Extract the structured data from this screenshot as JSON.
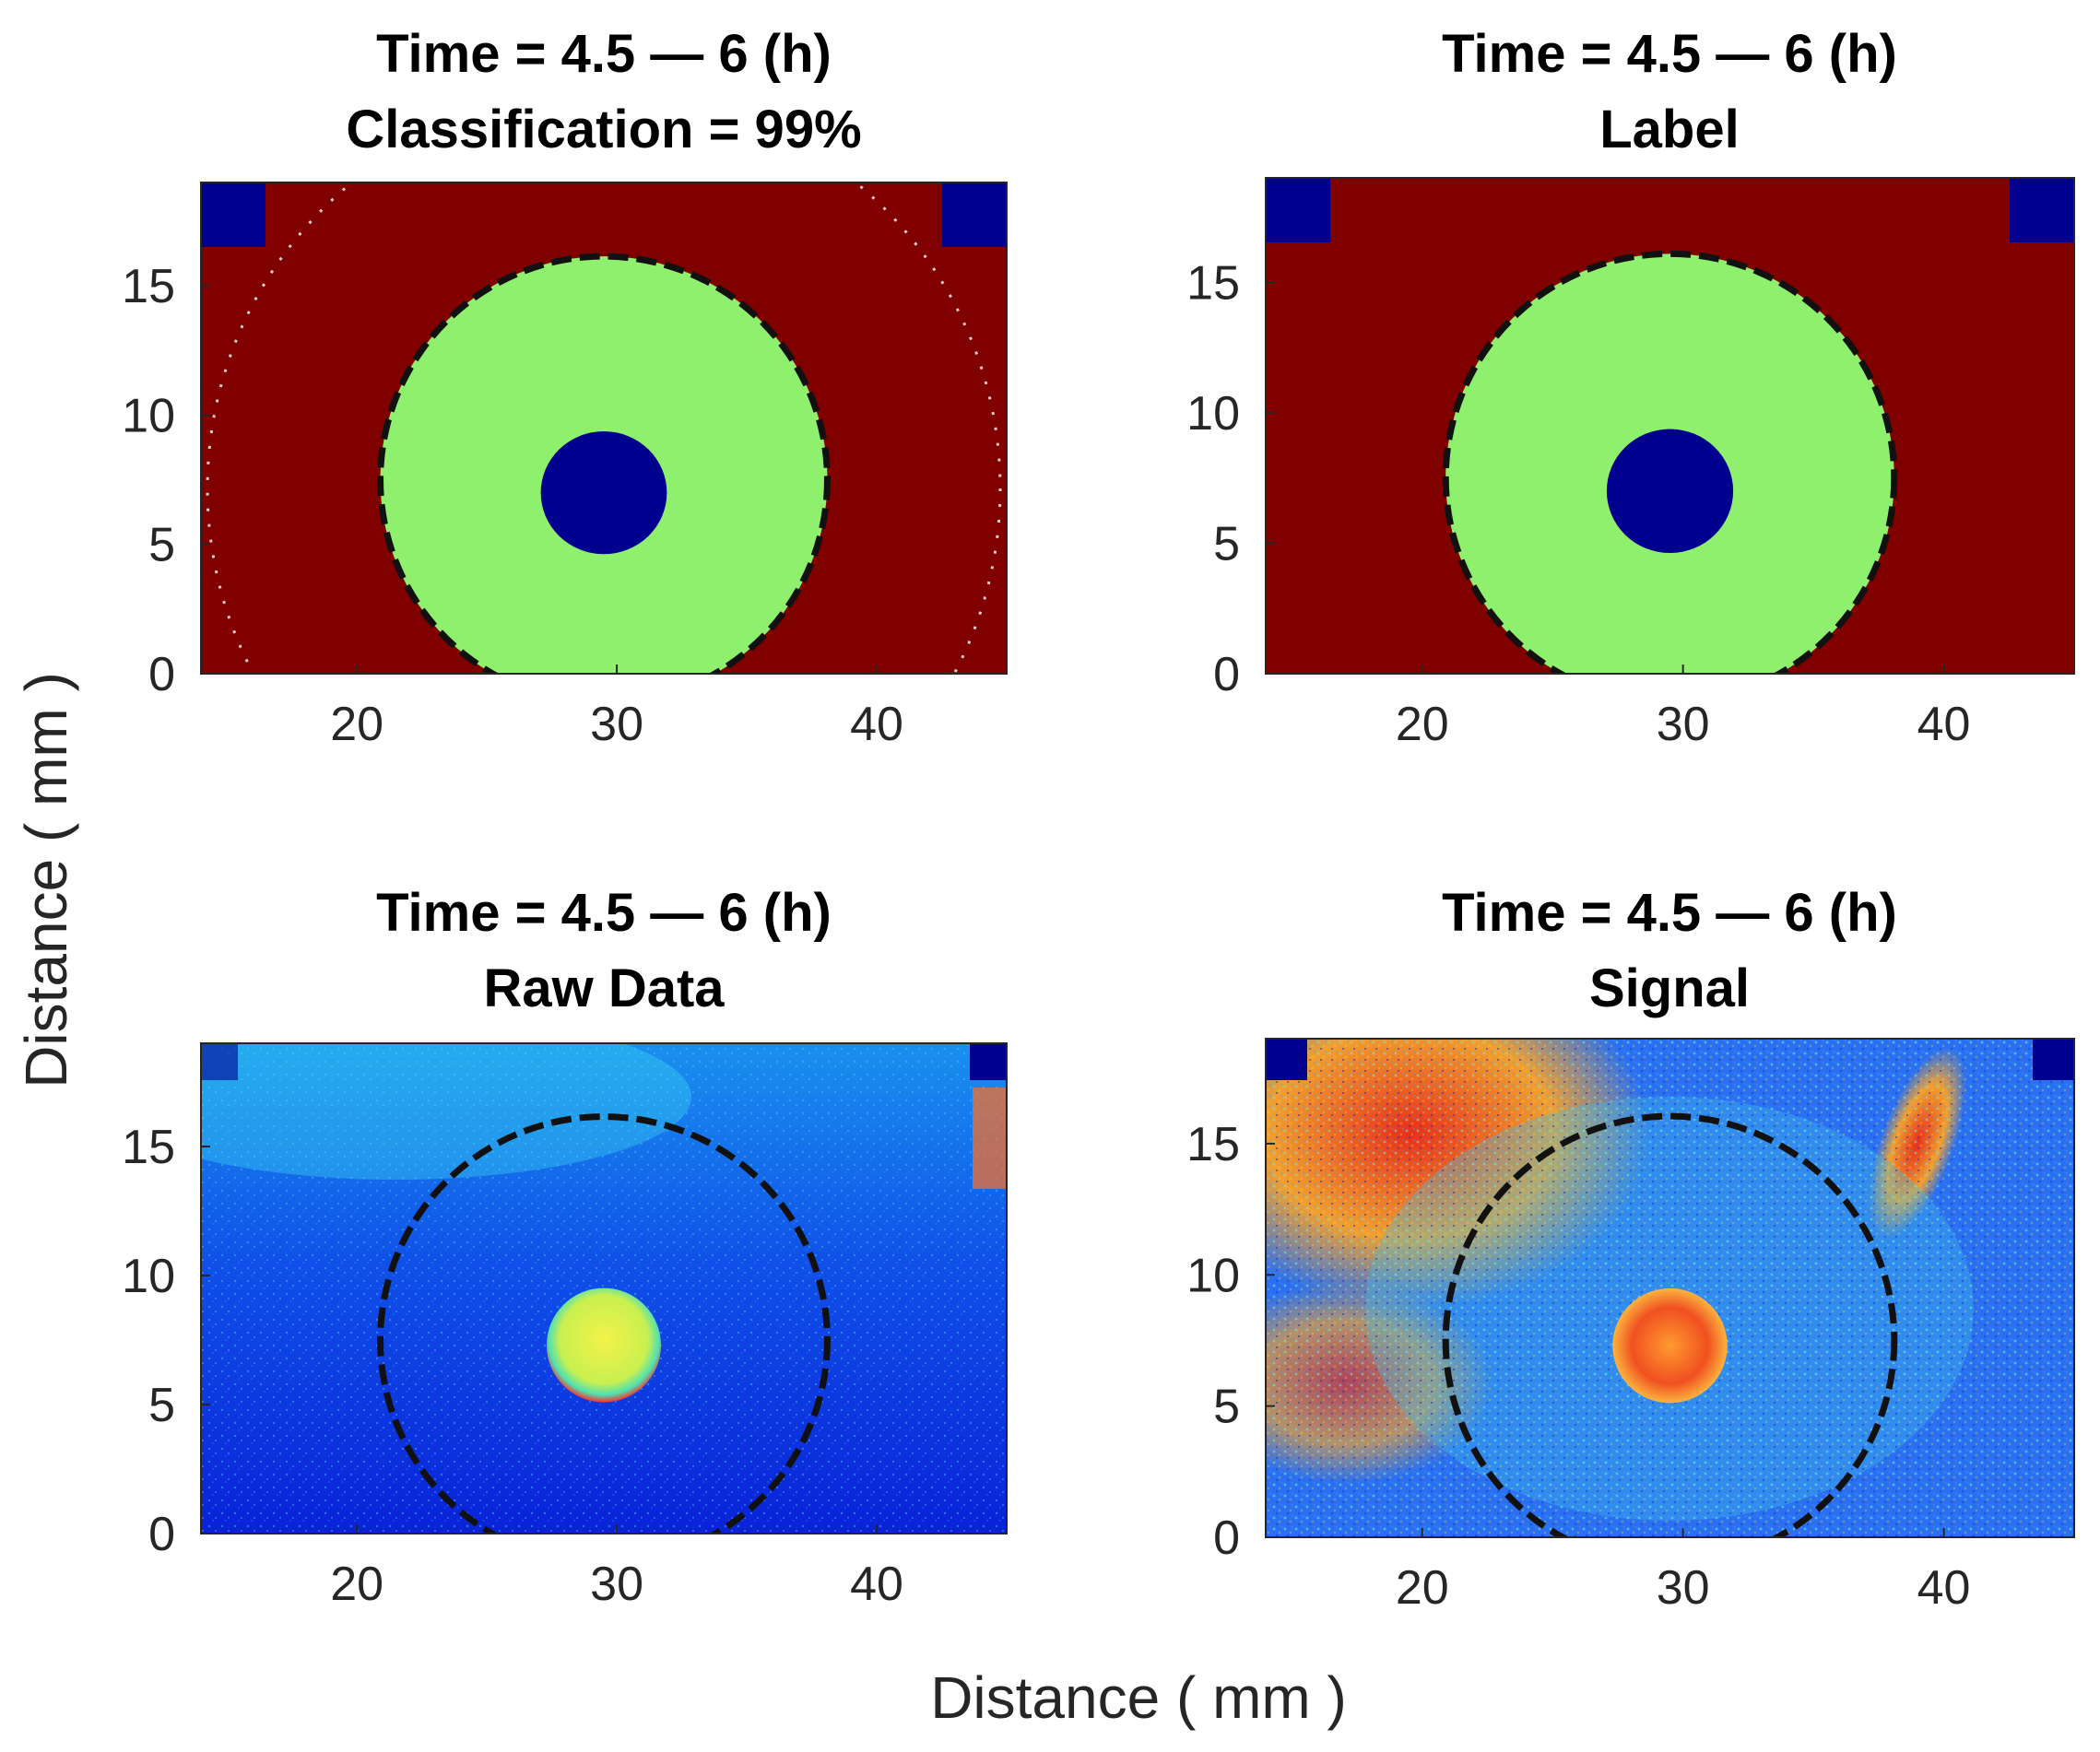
{
  "figure": {
    "xlabel": "Distance ( mm )",
    "ylabel": "Distance ( mm )"
  },
  "chart_data": [
    {
      "type": "heatmap",
      "panel": "classification",
      "title_line1": "Time = 4.5 — 6 (h)",
      "title_line2": "Classification = 99%",
      "xlim": [
        14,
        45
      ],
      "ylim": [
        0,
        19
      ],
      "xticks": [
        "20",
        "30",
        "40"
      ],
      "yticks": [
        "0",
        "5",
        "10",
        "15"
      ],
      "regions": [
        {
          "label": "background",
          "color": "#800000"
        },
        {
          "label": "outer disk",
          "color": "#8ff06d"
        },
        {
          "label": "inner core",
          "color": "#00008f"
        }
      ],
      "outer_circle": {
        "cx": 29.5,
        "cy": 7.5,
        "r": 8.6
      },
      "inner_circle": {
        "cx": 29.5,
        "cy": 7.0,
        "r": 2.5
      },
      "dashed_outline": true
    },
    {
      "type": "heatmap",
      "panel": "label",
      "title_line1": "Time = 4.5 — 6 (h)",
      "title_line2": "Label",
      "xlim": [
        14,
        45
      ],
      "ylim": [
        0,
        19
      ],
      "xticks": [
        "20",
        "30",
        "40"
      ],
      "yticks": [
        "0",
        "5",
        "10",
        "15"
      ],
      "regions": [
        {
          "label": "background",
          "color": "#800000"
        },
        {
          "label": "outer disk",
          "color": "#8ff06d"
        },
        {
          "label": "inner core",
          "color": "#00008f"
        }
      ],
      "outer_circle": {
        "cx": 29.5,
        "cy": 7.5,
        "r": 8.6
      },
      "inner_circle": {
        "cx": 29.5,
        "cy": 7.0,
        "r": 2.5
      },
      "dashed_outline": true
    },
    {
      "type": "heatmap",
      "panel": "raw",
      "title_line1": "Time = 4.5 — 6 (h)",
      "title_line2": "Raw Data",
      "xlim": [
        14,
        45
      ],
      "ylim": [
        0,
        19
      ],
      "xticks": [
        "20",
        "30",
        "40"
      ],
      "yticks": [
        "0",
        "5",
        "10",
        "15"
      ],
      "colormap": "jet",
      "background_color": "#0a22d8",
      "hot_spot": {
        "cx": 29.5,
        "cy": 7.3,
        "r": 2.2,
        "colors": [
          "#e8f040",
          "#40e0a0",
          "#ff3030"
        ]
      },
      "outer_circle": {
        "cx": 29.5,
        "cy": 7.5,
        "r": 8.6
      },
      "dashed_outline": true
    },
    {
      "type": "heatmap",
      "panel": "signal",
      "title_line1": "Time = 4.5 — 6 (h)",
      "title_line2": "Signal",
      "xlim": [
        14,
        45
      ],
      "ylim": [
        0,
        19
      ],
      "xticks": [
        "20",
        "30",
        "40"
      ],
      "yticks": [
        "0",
        "5",
        "10",
        "15"
      ],
      "colormap": "jet",
      "background_color": "#2a6ef0",
      "hot_spot": {
        "cx": 29.5,
        "cy": 7.3,
        "r": 2.2,
        "colors": [
          "#ff8020",
          "#e02010",
          "#ffd040"
        ]
      },
      "outer_circle": {
        "cx": 29.5,
        "cy": 7.5,
        "r": 8.6
      },
      "dashed_outline": true
    }
  ],
  "colors": {
    "frame": "#262626",
    "dark_blue": "#00008f",
    "dark_red": "#800000",
    "light_green": "#8ff06d",
    "jet_blue": "#0a22d8"
  }
}
